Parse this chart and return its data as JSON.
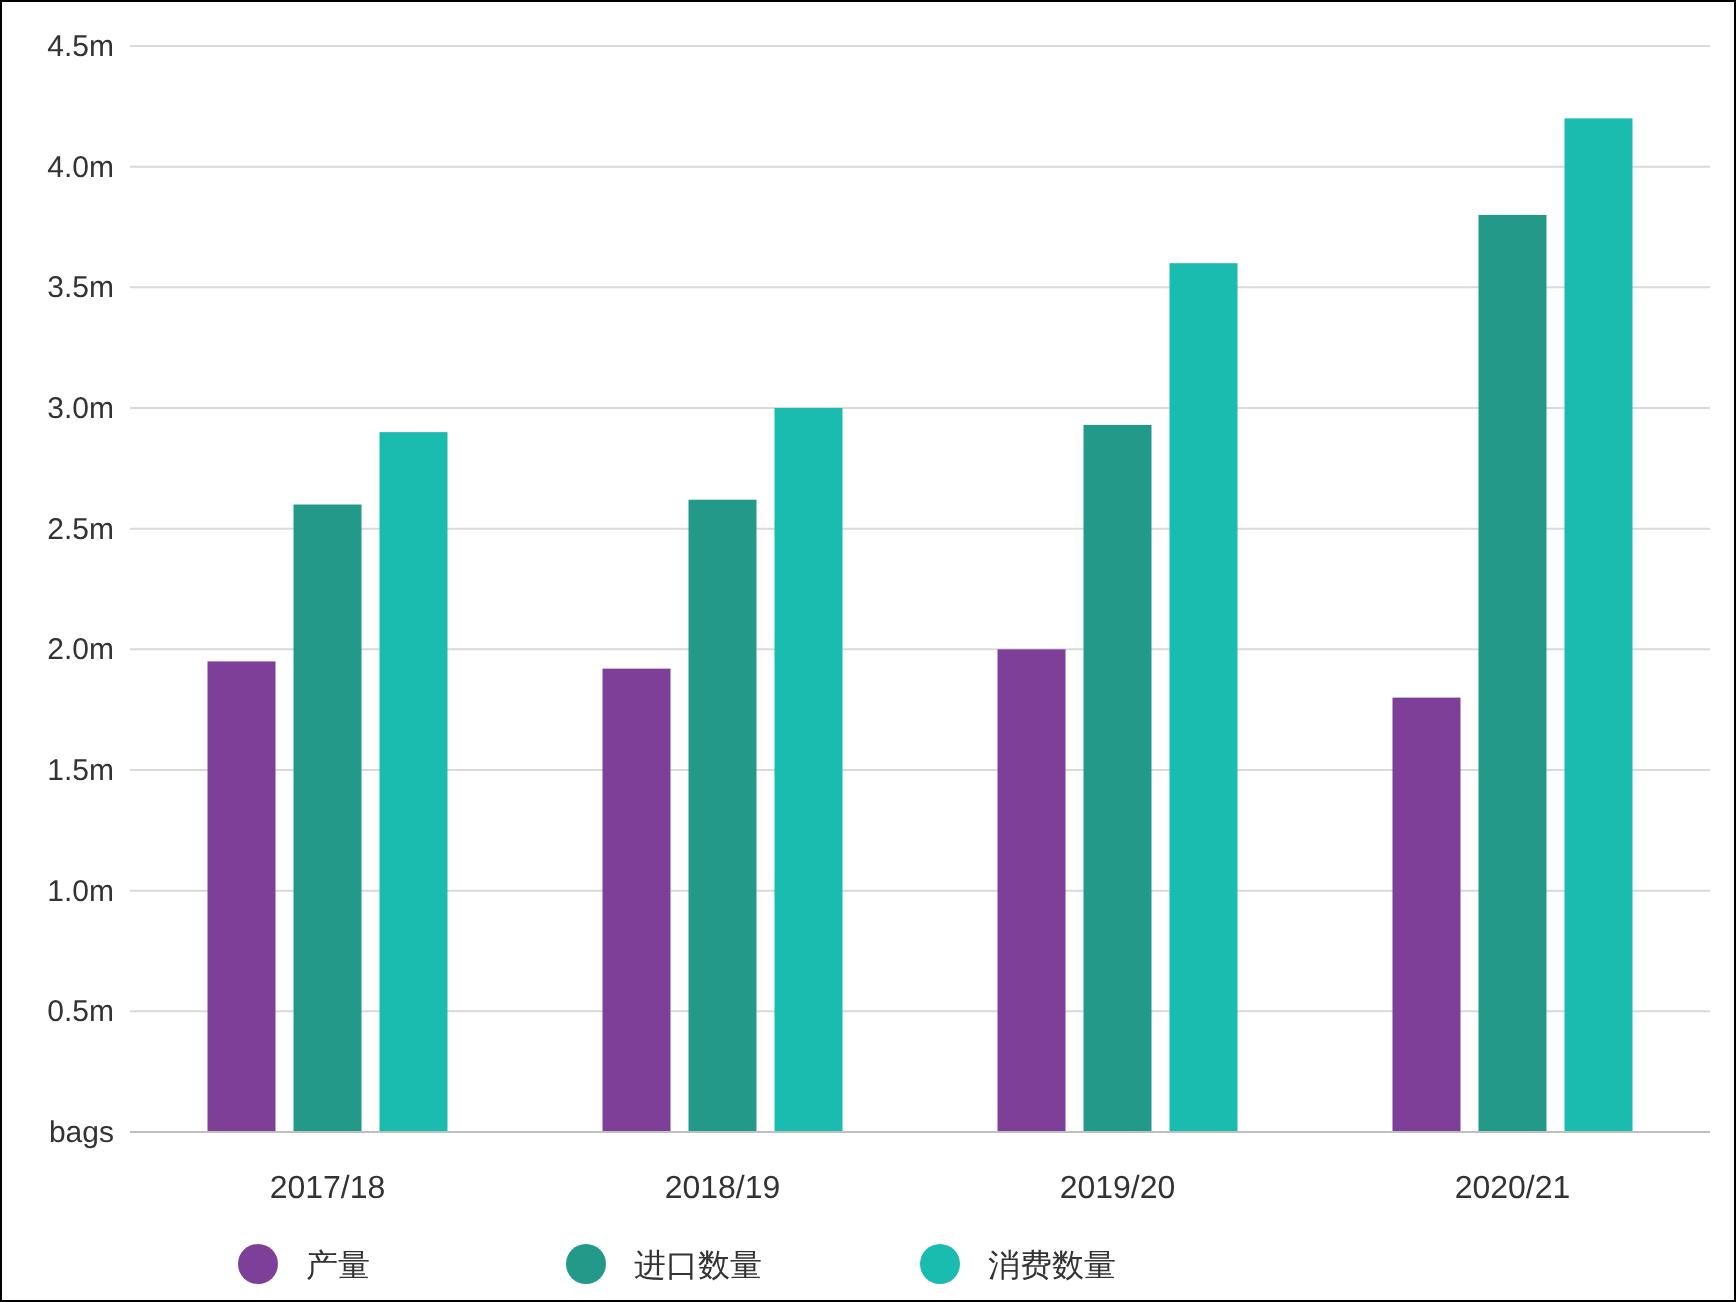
{
  "chart_data": {
    "type": "bar",
    "categories": [
      "2017/18",
      "2018/19",
      "2019/20",
      "2020/21"
    ],
    "series": [
      {
        "name": "产量",
        "color": "#7e3f98",
        "values": [
          1.95,
          1.92,
          2.0,
          1.8
        ]
      },
      {
        "name": "进口数量",
        "color": "#23998a",
        "values": [
          2.6,
          2.62,
          2.93,
          3.8
        ]
      },
      {
        "name": "消费数量",
        "color": "#1bbcb0",
        "values": [
          2.9,
          3.0,
          3.6,
          4.2
        ]
      }
    ],
    "ylim": [
      0,
      4.5
    ],
    "yticks": [
      {
        "value": 0,
        "label": "bags"
      },
      {
        "value": 0.5,
        "label": "0.5m"
      },
      {
        "value": 1.0,
        "label": "1.0m"
      },
      {
        "value": 1.5,
        "label": "1.5m"
      },
      {
        "value": 2.0,
        "label": "2.0m"
      },
      {
        "value": 2.5,
        "label": "2.5m"
      },
      {
        "value": 3.0,
        "label": "3.0m"
      },
      {
        "value": 3.5,
        "label": "3.5m"
      },
      {
        "value": 4.0,
        "label": "4.0m"
      },
      {
        "value": 4.5,
        "label": "4.5m"
      }
    ],
    "grid": "y",
    "legend": "bottom"
  }
}
